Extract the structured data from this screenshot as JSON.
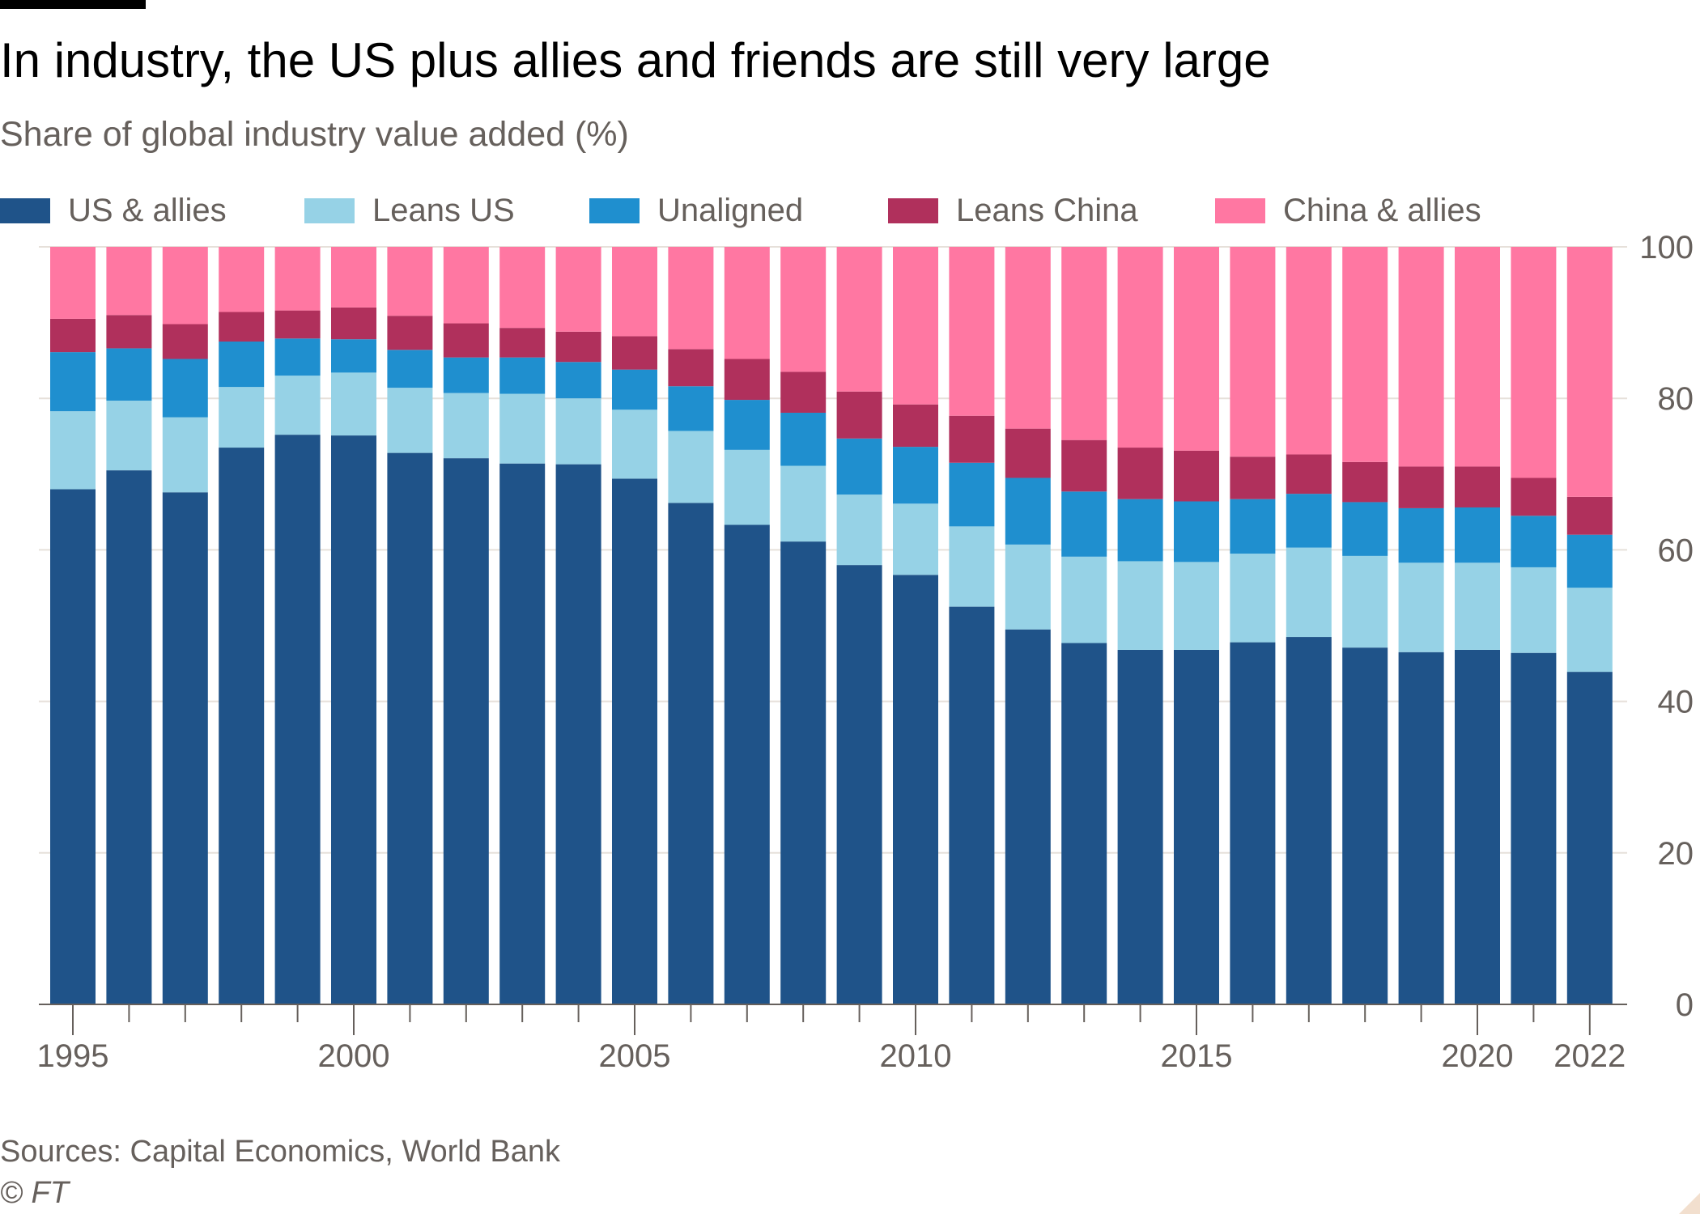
{
  "title": "In industry, the US plus allies and friends are still very large",
  "subtitle": "Share of global industry value added (%)",
  "legend": [
    {
      "label": "US & allies",
      "color": "#1f5389"
    },
    {
      "label": "Leans US",
      "color": "#96d2e6"
    },
    {
      "label": "Unaligned",
      "color": "#1f8fcf"
    },
    {
      "label": "Leans China",
      "color": "#b0305c"
    },
    {
      "label": "China & allies",
      "color": "#ff77a2"
    }
  ],
  "chart_data": {
    "type": "bar",
    "stacked": true,
    "title": "In industry, the US plus allies and friends are still very large",
    "ylabel": "Share of global industry value added (%)",
    "xlabel": "",
    "ylim": [
      0,
      100
    ],
    "yticks": [
      0,
      20,
      40,
      60,
      80,
      100
    ],
    "xtick_labels": [
      "1995",
      "2000",
      "2005",
      "2010",
      "2015",
      "2020",
      "2022"
    ],
    "y_axis_position": "right",
    "categories": [
      1995,
      1996,
      1997,
      1998,
      1999,
      2000,
      2001,
      2002,
      2003,
      2004,
      2005,
      2006,
      2007,
      2008,
      2009,
      2010,
      2011,
      2012,
      2013,
      2014,
      2015,
      2016,
      2017,
      2018,
      2019,
      2020,
      2021,
      2022
    ],
    "series": [
      {
        "name": "US & allies",
        "values": [
          68.0,
          70.5,
          67.6,
          73.5,
          75.2,
          75.1,
          72.8,
          72.1,
          71.4,
          71.3,
          69.4,
          66.2,
          63.3,
          61.1,
          58.0,
          56.7,
          52.5,
          49.5,
          47.7,
          46.8,
          46.8,
          47.8,
          48.5,
          47.1,
          46.5,
          46.8,
          46.4,
          43.9
        ]
      },
      {
        "name": "Leans US",
        "values": [
          10.3,
          9.2,
          9.9,
          8.0,
          7.8,
          8.3,
          8.6,
          8.6,
          9.2,
          8.7,
          9.1,
          9.5,
          9.9,
          10.0,
          9.3,
          9.4,
          10.6,
          11.2,
          11.4,
          11.7,
          11.6,
          11.7,
          11.8,
          12.1,
          11.8,
          11.5,
          11.3,
          11.1
        ]
      },
      {
        "name": "Unaligned",
        "values": [
          7.8,
          6.9,
          7.7,
          6.0,
          4.9,
          4.4,
          5.0,
          4.7,
          4.8,
          4.8,
          5.3,
          5.9,
          6.6,
          7.0,
          7.4,
          7.5,
          8.4,
          8.8,
          8.6,
          8.2,
          8.0,
          7.2,
          7.1,
          7.1,
          7.2,
          7.3,
          6.8,
          7.0
        ]
      },
      {
        "name": "Leans China",
        "values": [
          4.4,
          4.4,
          4.6,
          3.9,
          3.7,
          4.2,
          4.5,
          4.5,
          3.9,
          4.0,
          4.4,
          4.9,
          5.4,
          5.4,
          6.2,
          5.6,
          6.2,
          6.5,
          6.8,
          6.8,
          6.7,
          5.6,
          5.2,
          5.3,
          5.5,
          5.4,
          5.0,
          5.0
        ]
      },
      {
        "name": "China & allies",
        "values": [
          9.5,
          9.0,
          10.2,
          8.6,
          8.4,
          8.0,
          9.1,
          10.1,
          10.7,
          11.2,
          11.8,
          13.5,
          14.8,
          16.5,
          19.1,
          20.8,
          22.3,
          24.0,
          25.5,
          26.5,
          26.9,
          27.7,
          27.4,
          28.4,
          29.0,
          29.0,
          30.5,
          33.0
        ]
      }
    ]
  },
  "source": "Sources: Capital Economics, World Bank",
  "copyright": "© FT"
}
